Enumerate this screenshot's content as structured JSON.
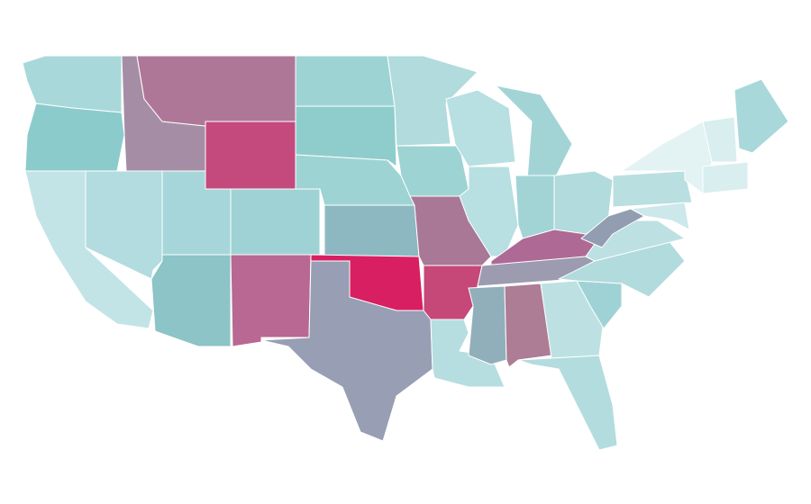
{
  "map": {
    "colors": [
      "#a9d8db",
      "#8ccbcb",
      "#c3e4e6",
      "#b2dcdf",
      "#a58ea5",
      "#ae7797",
      "#c44a7e",
      "#a6d6d9",
      "#9fd2d4",
      "#8cc4c7",
      "#b86892",
      "#9ed3d3",
      "#8fcdcc",
      "#9ed3d3",
      "#8db8c1",
      "#d81f61",
      "#989eb4",
      "#b1dbdd",
      "#9ed3d3",
      "#a97896",
      "#c54878",
      "#b6dee0",
      "#b8dfe1",
      "#b8dfe1",
      "#a2d4d6",
      "#a2d4d6",
      "#b1dbdd",
      "#ae6a94",
      "#9c9bb0",
      "#91afba",
      "#ad7c95",
      "#bde1e3",
      "#b3dcdf",
      "#9fd2d4",
      "#b1dbdd",
      "#bde1e3",
      "#929db2",
      "#b9dfe1",
      "#e3f2f3",
      "#cde8ea",
      "#d8eeef",
      "#a9d8db",
      "#d8eeef"
    ]
  }
}
